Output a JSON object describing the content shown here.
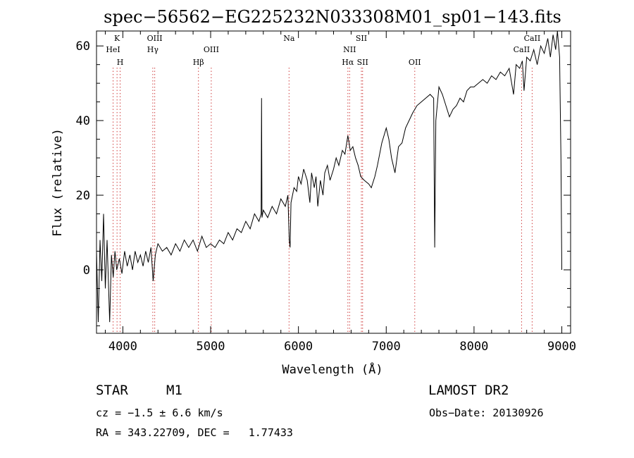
{
  "chart_data": {
    "type": "line",
    "title": "spec−56562−EG225232N033308M01_sp01−143.fits",
    "xlabel": "Wavelength (Å)",
    "ylabel": "Flux (relative)",
    "xlim": [
      3700,
      9100
    ],
    "ylim": [
      -17,
      64
    ],
    "x_ticks": [
      4000,
      5000,
      6000,
      7000,
      8000,
      9000
    ],
    "y_ticks": [
      0,
      20,
      40,
      60
    ],
    "grid": false,
    "series": [
      {
        "points": [
          [
            3700,
            5
          ],
          [
            3720,
            -14
          ],
          [
            3740,
            8
          ],
          [
            3760,
            -3
          ],
          [
            3780,
            15
          ],
          [
            3800,
            -5
          ],
          [
            3820,
            8
          ],
          [
            3850,
            -14
          ],
          [
            3870,
            4
          ],
          [
            3890,
            -2
          ],
          [
            3910,
            5
          ],
          [
            3930,
            0
          ],
          [
            3960,
            3
          ],
          [
            3990,
            -1
          ],
          [
            4020,
            5
          ],
          [
            4050,
            1
          ],
          [
            4080,
            4
          ],
          [
            4110,
            0
          ],
          [
            4140,
            5
          ],
          [
            4170,
            2
          ],
          [
            4200,
            4
          ],
          [
            4230,
            1
          ],
          [
            4260,
            5
          ],
          [
            4290,
            2
          ],
          [
            4320,
            6
          ],
          [
            4345,
            -3
          ],
          [
            4370,
            4
          ],
          [
            4400,
            7
          ],
          [
            4450,
            5
          ],
          [
            4500,
            6
          ],
          [
            4550,
            4
          ],
          [
            4600,
            7
          ],
          [
            4650,
            5
          ],
          [
            4700,
            8
          ],
          [
            4750,
            6
          ],
          [
            4800,
            8
          ],
          [
            4850,
            5
          ],
          [
            4900,
            9
          ],
          [
            4950,
            6
          ],
          [
            5000,
            7
          ],
          [
            5050,
            6
          ],
          [
            5100,
            8
          ],
          [
            5150,
            7
          ],
          [
            5200,
            10
          ],
          [
            5250,
            8
          ],
          [
            5300,
            11
          ],
          [
            5350,
            10
          ],
          [
            5400,
            13
          ],
          [
            5450,
            11
          ],
          [
            5500,
            15
          ],
          [
            5550,
            13
          ],
          [
            5575,
            15
          ],
          [
            5580,
            46
          ],
          [
            5585,
            14
          ],
          [
            5600,
            16
          ],
          [
            5650,
            14
          ],
          [
            5700,
            17
          ],
          [
            5750,
            15
          ],
          [
            5800,
            19
          ],
          [
            5850,
            17
          ],
          [
            5880,
            20
          ],
          [
            5895,
            8
          ],
          [
            5905,
            6
          ],
          [
            5915,
            18
          ],
          [
            5950,
            22
          ],
          [
            5980,
            21
          ],
          [
            6000,
            25
          ],
          [
            6030,
            23
          ],
          [
            6060,
            27
          ],
          [
            6100,
            24
          ],
          [
            6130,
            18
          ],
          [
            6150,
            26
          ],
          [
            6180,
            22
          ],
          [
            6200,
            25
          ],
          [
            6220,
            17
          ],
          [
            6250,
            24
          ],
          [
            6280,
            20
          ],
          [
            6300,
            26
          ],
          [
            6330,
            28
          ],
          [
            6360,
            24
          ],
          [
            6400,
            27
          ],
          [
            6430,
            30
          ],
          [
            6460,
            28
          ],
          [
            6500,
            32
          ],
          [
            6530,
            31
          ],
          [
            6563,
            36
          ],
          [
            6590,
            32
          ],
          [
            6620,
            33
          ],
          [
            6650,
            30
          ],
          [
            6680,
            28
          ],
          [
            6710,
            25
          ],
          [
            6750,
            24
          ],
          [
            6800,
            23
          ],
          [
            6830,
            22
          ],
          [
            6870,
            25
          ],
          [
            6900,
            28
          ],
          [
            6950,
            34
          ],
          [
            7000,
            38
          ],
          [
            7030,
            35
          ],
          [
            7060,
            30
          ],
          [
            7100,
            26
          ],
          [
            7140,
            33
          ],
          [
            7180,
            34
          ],
          [
            7220,
            38
          ],
          [
            7260,
            40
          ],
          [
            7300,
            42
          ],
          [
            7350,
            44
          ],
          [
            7400,
            45
          ],
          [
            7450,
            46
          ],
          [
            7500,
            47
          ],
          [
            7540,
            46
          ],
          [
            7552,
            6
          ],
          [
            7565,
            40
          ],
          [
            7600,
            49
          ],
          [
            7640,
            47
          ],
          [
            7680,
            44
          ],
          [
            7720,
            41
          ],
          [
            7760,
            43
          ],
          [
            7800,
            44
          ],
          [
            7840,
            46
          ],
          [
            7880,
            45
          ],
          [
            7920,
            48
          ],
          [
            7960,
            49
          ],
          [
            8000,
            49
          ],
          [
            8050,
            50
          ],
          [
            8100,
            51
          ],
          [
            8150,
            50
          ],
          [
            8200,
            52
          ],
          [
            8250,
            51
          ],
          [
            8300,
            53
          ],
          [
            8350,
            52
          ],
          [
            8400,
            54
          ],
          [
            8450,
            47
          ],
          [
            8480,
            55
          ],
          [
            8520,
            54
          ],
          [
            8550,
            56
          ],
          [
            8570,
            48
          ],
          [
            8600,
            57
          ],
          [
            8640,
            56
          ],
          [
            8680,
            59
          ],
          [
            8720,
            55
          ],
          [
            8760,
            60
          ],
          [
            8800,
            58
          ],
          [
            8840,
            62
          ],
          [
            8870,
            57
          ],
          [
            8900,
            63
          ],
          [
            8930,
            59
          ],
          [
            8950,
            64
          ],
          [
            8975,
            57
          ],
          [
            8990,
            30
          ],
          [
            9000,
            0
          ]
        ]
      }
    ],
    "emission_lines": [
      {
        "label": "K",
        "wavelength": 3934
      },
      {
        "label": "HeI",
        "wavelength": 3889
      },
      {
        "label": "H",
        "wavelength": 3969
      },
      {
        "label": "OIII",
        "wavelength": 4363
      },
      {
        "label": "Hγ",
        "wavelength": 4341
      },
      {
        "label": "Hβ",
        "wavelength": 4861
      },
      {
        "label": "OIII",
        "wavelength": 5007
      },
      {
        "label": "Na",
        "wavelength": 5893
      },
      {
        "label": "SII",
        "wavelength": 6717
      },
      {
        "label": "NII",
        "wavelength": 6583
      },
      {
        "label": "Hα",
        "wavelength": 6563
      },
      {
        "label": "SII",
        "wavelength": 6731
      },
      {
        "label": "OII",
        "wavelength": 7325
      },
      {
        "label": "CaII",
        "wavelength": 8662
      },
      {
        "label": "CaII",
        "wavelength": 8542
      }
    ]
  },
  "info": {
    "object_class": "STAR",
    "subclass": "M1",
    "survey": "LAMOST DR2",
    "cz": "cz = −1.5 ± 6.6 km/s",
    "obs_date": "Obs−Date: 20130926",
    "coords": "RA = 343.22709, DEC =   1.77433"
  },
  "colors": {
    "spectrum": "#000000",
    "line_markers": "#d04040",
    "axes": "#000000"
  }
}
